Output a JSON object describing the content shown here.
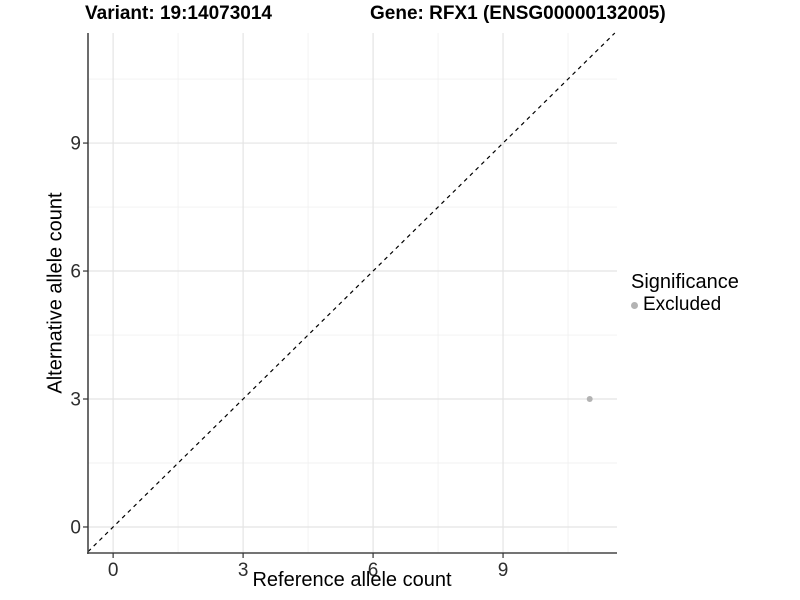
{
  "header": {
    "variant_title": "Variant: 19:14073014",
    "gene_title": "Gene: RFX1 (ENSG00000132005)"
  },
  "legend": {
    "title": "Significance",
    "items": [
      {
        "label": "Excluded",
        "color": "#b3b3b3"
      }
    ]
  },
  "style": {
    "background": "#ffffff",
    "grid_major_color": "#e4e4e4",
    "grid_minor_color": "#f1f1f1",
    "axis_line_color": "#474747",
    "tick_color": "#333333",
    "tick_label_color": "#2e2e2e",
    "title_color": "#000000",
    "identity_line_color": "#000000"
  },
  "chart_data": {
    "type": "scatter",
    "title": "",
    "xlabel": "Reference allele count",
    "ylabel": "Alternative allele count",
    "xlim": [
      -0.58,
      11.63
    ],
    "ylim": [
      -0.61,
      11.58
    ],
    "xticks": [
      0,
      3,
      6,
      9
    ],
    "yticks": [
      0,
      3,
      6,
      9
    ],
    "xticks_minor": [
      1.5,
      4.5,
      7.5,
      10.5
    ],
    "yticks_minor": [
      1.5,
      4.5,
      7.5,
      10.5
    ],
    "grid": true,
    "legend_position": "right",
    "reference_line": {
      "kind": "identity",
      "style": "dashed",
      "color": "#000000"
    },
    "series": [
      {
        "name": "Excluded",
        "color": "#b3b3b3",
        "point_radius": 3,
        "points": [
          {
            "x": 11,
            "y": 3
          }
        ]
      }
    ]
  }
}
